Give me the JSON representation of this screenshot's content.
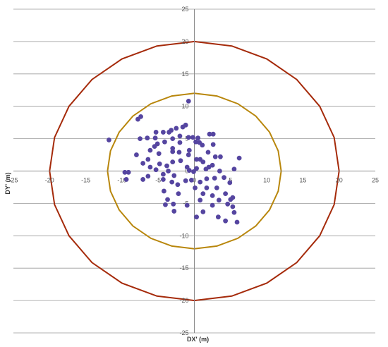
{
  "chart_data": {
    "type": "scatter",
    "xlabel": "DX' (m)",
    "ylabel": "DY' (m)",
    "xlim": [
      -25,
      25
    ],
    "ylim": [
      -25,
      25
    ],
    "x_ticks": [
      -25,
      -20,
      -15,
      -10,
      -5,
      0,
      5,
      10,
      15,
      20,
      25
    ],
    "y_ticks": [
      -25,
      -20,
      -15,
      -10,
      -5,
      0,
      5,
      10,
      15,
      20,
      25
    ],
    "grid": "horizontal",
    "legend": "none",
    "circles": [
      {
        "radius": 20,
        "color": "#a52a0a"
      },
      {
        "radius": 12,
        "color": "#b8860b"
      }
    ],
    "point_color": "#5545a0",
    "points": [
      [
        -0.8,
        10.8
      ],
      [
        -7.4,
        8.4
      ],
      [
        -7.8,
        8.0
      ],
      [
        -1.2,
        7.1
      ],
      [
        -1.6,
        6.8
      ],
      [
        -2.5,
        6.6
      ],
      [
        -3.2,
        6.3
      ],
      [
        -3.5,
        6.0
      ],
      [
        -4.3,
        6.0
      ],
      [
        -5.3,
        6.0
      ],
      [
        2.6,
        5.7
      ],
      [
        2.1,
        5.7
      ],
      [
        -2.0,
        5.4
      ],
      [
        -0.8,
        5.2
      ],
      [
        -0.2,
        5.2
      ],
      [
        0.5,
        5.1
      ],
      [
        -6.5,
        5.1
      ],
      [
        -7.5,
        5.0
      ],
      [
        -5.4,
        5.1
      ],
      [
        -3.0,
        5.0
      ],
      [
        -11.8,
        4.8
      ],
      [
        -4.1,
        4.5
      ],
      [
        -5.1,
        4.2
      ],
      [
        0.2,
        4.5
      ],
      [
        0.7,
        4.4
      ],
      [
        -2.0,
        4.4
      ],
      [
        1.1,
        4.0
      ],
      [
        2.6,
        4.1
      ],
      [
        -5.5,
        3.8
      ],
      [
        -3.0,
        3.5
      ],
      [
        -0.7,
        3.2
      ],
      [
        -3.0,
        3.0
      ],
      [
        -6.1,
        3.2
      ],
      [
        -2.1,
        2.9
      ],
      [
        1.9,
        2.9
      ],
      [
        -4.9,
        2.7
      ],
      [
        -0.8,
        2.5
      ],
      [
        -8.0,
        2.5
      ],
      [
        -6.4,
        1.8
      ],
      [
        0.3,
        1.8
      ],
      [
        -1.9,
        1.6
      ],
      [
        -3.0,
        1.4
      ],
      [
        2.9,
        2.2
      ],
      [
        3.6,
        2.2
      ],
      [
        0.8,
        1.8
      ],
      [
        6.2,
        2.0
      ],
      [
        -4.8,
        1.1
      ],
      [
        -7.1,
        1.2
      ],
      [
        1.2,
        1.4
      ],
      [
        -3.8,
        0.8
      ],
      [
        -6.1,
        0.6
      ],
      [
        -1.0,
        0.6
      ],
      [
        2.0,
        0.6
      ],
      [
        2.5,
        0.9
      ],
      [
        -5.3,
        0.2
      ],
      [
        0.3,
        0.4
      ],
      [
        1.6,
        0.3
      ],
      [
        -0.7,
        0.1
      ],
      [
        -3.6,
        0.0
      ],
      [
        -9.6,
        -0.2
      ],
      [
        -9.1,
        -0.2
      ],
      [
        3.5,
        0.0
      ],
      [
        5.5,
        0.3
      ],
      [
        -0.1,
        -0.1
      ],
      [
        -4.3,
        -0.5
      ],
      [
        -6.4,
        -0.8
      ],
      [
        -2.8,
        -0.7
      ],
      [
        -9.4,
        -1.3
      ],
      [
        -1.2,
        -1.5
      ],
      [
        1.7,
        -1.2
      ],
      [
        -0.4,
        -1.4
      ],
      [
        4.1,
        -1.0
      ],
      [
        2.8,
        -1.1
      ],
      [
        -7.1,
        -1.3
      ],
      [
        -4.3,
        -1.3
      ],
      [
        -3.1,
        -1.7
      ],
      [
        0.8,
        -1.7
      ],
      [
        4.9,
        -1.8
      ],
      [
        -2.3,
        -2.1
      ],
      [
        0.1,
        -2.6
      ],
      [
        1.7,
        -2.6
      ],
      [
        3.1,
        -2.6
      ],
      [
        -4.2,
        -3.1
      ],
      [
        -2.2,
        -3.5
      ],
      [
        1.2,
        -3.5
      ],
      [
        4.3,
        -3.5
      ],
      [
        2.5,
        -3.8
      ],
      [
        5.3,
        -4.1
      ],
      [
        5.0,
        -4.4
      ],
      [
        -3.7,
        -4.4
      ],
      [
        0.8,
        -4.5
      ],
      [
        3.4,
        -4.5
      ],
      [
        -2.9,
        -5.1
      ],
      [
        4.6,
        -5.1
      ],
      [
        -4.0,
        -5.2
      ],
      [
        -1.0,
        -5.3
      ],
      [
        2.5,
        -5.3
      ],
      [
        5.3,
        -5.5
      ],
      [
        1.2,
        -6.3
      ],
      [
        -2.8,
        -6.2
      ],
      [
        5.5,
        -6.4
      ],
      [
        3.3,
        -7.1
      ],
      [
        0.3,
        -7.1
      ],
      [
        4.3,
        -7.7
      ],
      [
        5.9,
        -7.9
      ]
    ]
  }
}
